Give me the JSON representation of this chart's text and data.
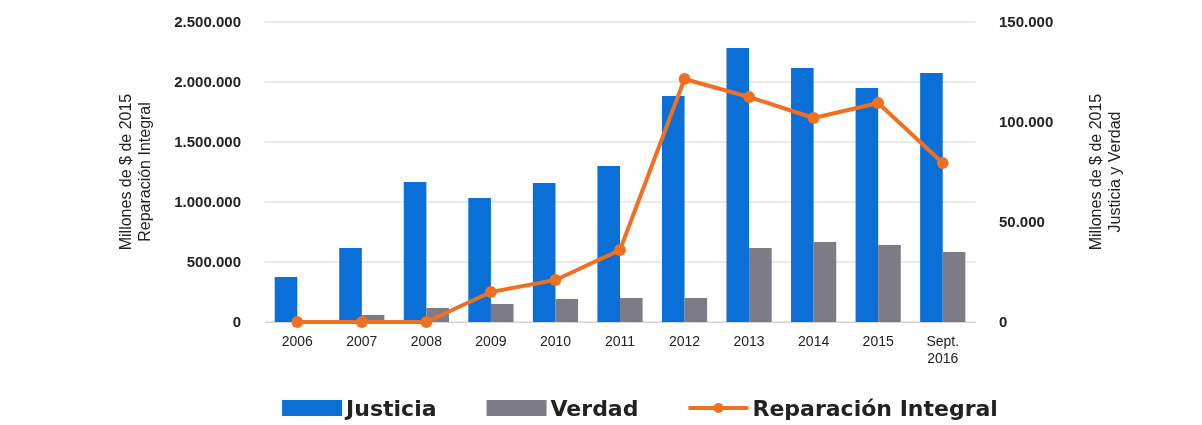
{
  "chart_data": {
    "type": "bar",
    "categories": [
      "2006",
      "2007",
      "2008",
      "2009",
      "2010",
      "2011",
      "2012",
      "2013",
      "2014",
      "2015",
      "Sept. 2016"
    ],
    "series": [
      {
        "name": "Justicia",
        "axis": "y2",
        "color": "#0a6fd6",
        "values": [
          22500,
          37000,
          70000,
          62000,
          69500,
          78000,
          113000,
          137000,
          127000,
          117000,
          124500
        ]
      },
      {
        "name": "Verdad",
        "axis": "y2",
        "color": "#7d7b86",
        "values": [
          0,
          3500,
          7000,
          9000,
          11500,
          12000,
          12000,
          37000,
          40000,
          38500,
          35000
        ]
      },
      {
        "name": "Reparación Integral",
        "type": "line",
        "color": "#f07022",
        "marker": "circle",
        "values": [
          0,
          0,
          0,
          250000,
          350000,
          600000,
          2025000,
          1875000,
          1700000,
          1825000,
          1325000
        ]
      }
    ],
    "ylabel": "Millones de $ de 2015\nReparación Integral",
    "y2label": "Millones de $ de 2015\nJusticia y Verdad",
    "ylim": [
      0,
      2500000
    ],
    "yticks": [
      {
        "value": 0,
        "label": "0"
      },
      {
        "value": 500000,
        "label": "500.000"
      },
      {
        "value": 1000000,
        "label": "1.000.000"
      },
      {
        "value": 1500000,
        "label": "1.500.000"
      },
      {
        "value": 2000000,
        "label": "2.000.000"
      },
      {
        "value": 2500000,
        "label": "2.500.000"
      }
    ],
    "y2lim": [
      0,
      150000
    ],
    "y2ticks": [
      {
        "value": 0,
        "label": "0"
      },
      {
        "value": 50000,
        "label": "50.000"
      },
      {
        "value": 100000,
        "label": "100.000"
      },
      {
        "value": 150000,
        "label": "150.000"
      }
    ],
    "grid": "y",
    "legend": "bottom"
  }
}
